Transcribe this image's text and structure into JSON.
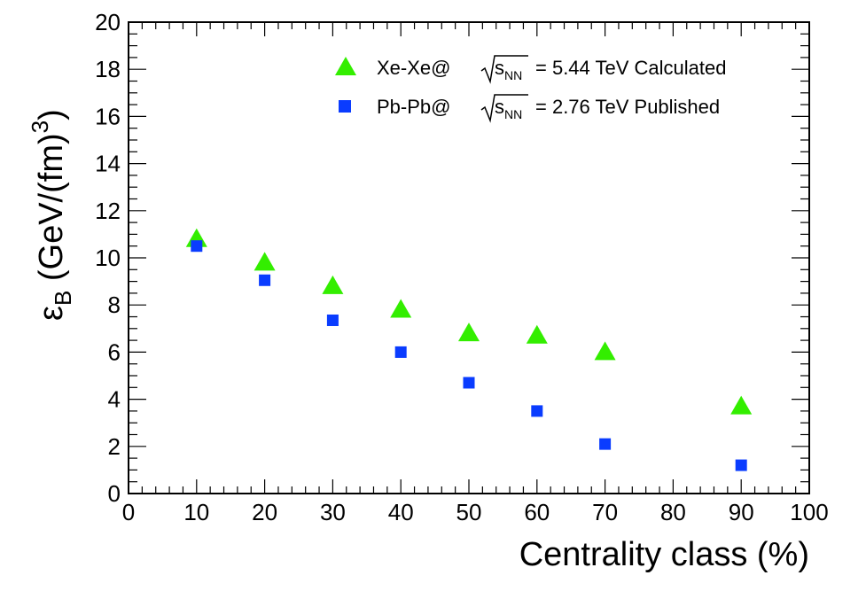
{
  "chart_data": {
    "type": "scatter",
    "xlabel": "Centrality class (%)",
    "ylabel": {
      "symbol": "ε",
      "symbol_sub": "B",
      "unit_main": " (GeV/(fm)",
      "unit_sup": "3",
      "unit_close": ")"
    },
    "xlim": [
      0,
      100
    ],
    "ylim": [
      0,
      20
    ],
    "xticks": [
      0,
      10,
      20,
      30,
      40,
      50,
      60,
      70,
      80,
      90,
      100
    ],
    "yticks": [
      0,
      2,
      4,
      6,
      8,
      10,
      12,
      14,
      16,
      18,
      20
    ],
    "legend_position": "top-right",
    "series": [
      {
        "name": "Xe-Xe 5.44 TeV Calculated",
        "legend": {
          "prefix": "Xe-Xe@",
          "sqrt_var": "s",
          "sqrt_sub": "NN",
          "suffix": "= 5.44 TeV Calculated"
        },
        "marker": "triangle",
        "color": "#33ee00",
        "x": [
          10,
          20,
          30,
          40,
          50,
          60,
          70,
          90
        ],
        "y": [
          10.8,
          9.8,
          8.8,
          7.8,
          6.8,
          6.7,
          6.0,
          3.7
        ]
      },
      {
        "name": "Pb-Pb 2.76 TeV Published",
        "legend": {
          "prefix": "Pb-Pb@",
          "sqrt_var": "s",
          "sqrt_sub": "NN",
          "suffix": "= 2.76 TeV Published"
        },
        "marker": "square",
        "color": "#0a3cff",
        "x": [
          10,
          20,
          30,
          40,
          50,
          60,
          70,
          90
        ],
        "y": [
          10.5,
          9.05,
          7.35,
          6.0,
          4.7,
          3.5,
          2.1,
          1.2
        ]
      }
    ]
  }
}
